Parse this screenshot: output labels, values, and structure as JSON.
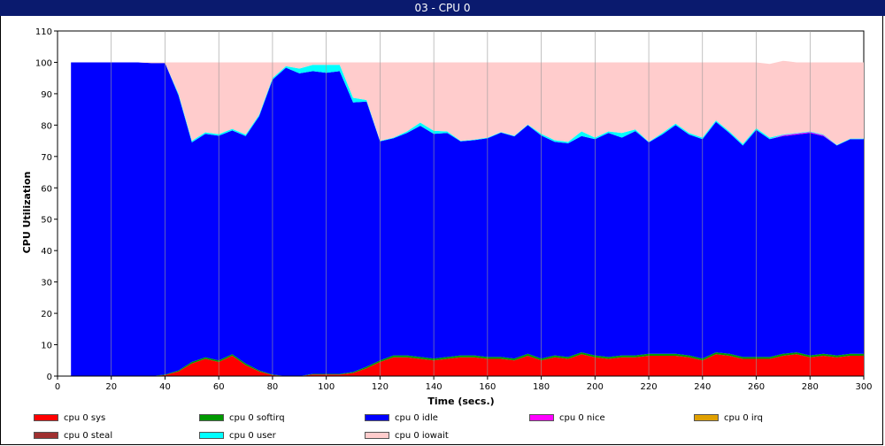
{
  "window": {
    "title": "03 - CPU 0"
  },
  "chart_data": {
    "type": "area",
    "stacked": true,
    "title": "",
    "xlabel": "Time (secs.)",
    "ylabel": "CPU Utilization",
    "xlim": [
      0,
      300
    ],
    "ylim": [
      0,
      110
    ],
    "xticks": [
      0,
      20,
      40,
      60,
      80,
      100,
      120,
      140,
      160,
      180,
      200,
      220,
      240,
      260,
      280,
      300
    ],
    "yticks": [
      0,
      10,
      20,
      30,
      40,
      50,
      60,
      70,
      80,
      90,
      100,
      110
    ],
    "grid": "vertical",
    "legend_position": "bottom",
    "x": [
      5,
      10,
      15,
      20,
      25,
      30,
      35,
      40,
      45,
      50,
      55,
      60,
      65,
      70,
      75,
      80,
      85,
      90,
      95,
      100,
      105,
      110,
      115,
      120,
      125,
      130,
      135,
      140,
      145,
      150,
      155,
      160,
      165,
      170,
      175,
      180,
      185,
      190,
      195,
      200,
      205,
      210,
      215,
      220,
      225,
      230,
      235,
      240,
      245,
      250,
      255,
      260,
      265,
      270,
      275,
      280,
      285,
      290,
      295,
      300
    ],
    "series": [
      {
        "name": "cpu 0 sys",
        "color": "#ff0000",
        "values": [
          0,
          0,
          0,
          0,
          0,
          0,
          0,
          0.3,
          1.5,
          4,
          5.5,
          4.5,
          6.5,
          3.5,
          1.5,
          0.3,
          0,
          0,
          0.5,
          0.5,
          0.5,
          1,
          2.5,
          4.5,
          6,
          6,
          5.5,
          5,
          5.5,
          6,
          6,
          5.5,
          5.5,
          5,
          6.5,
          5,
          6,
          5.5,
          7,
          6,
          5.5,
          6,
          6,
          6.5,
          6.5,
          6.5,
          6,
          5,
          7,
          6.5,
          5.5,
          5.5,
          5.5,
          6.5,
          7,
          6,
          6.5,
          6,
          6.5,
          6.5
        ]
      },
      {
        "name": "cpu 0 softirq",
        "color": "#009900",
        "values": [
          0,
          0,
          0,
          0,
          0,
          0,
          0,
          0.2,
          0.3,
          0.5,
          0.5,
          0.5,
          0.5,
          0.5,
          0.3,
          0.2,
          0,
          0,
          0.2,
          0.2,
          0.2,
          0.3,
          0.5,
          0.5,
          0.6,
          0.6,
          0.6,
          0.6,
          0.6,
          0.6,
          0.6,
          0.6,
          0.6,
          0.6,
          0.6,
          0.6,
          0.6,
          0.6,
          0.6,
          0.6,
          0.6,
          0.6,
          0.6,
          0.6,
          0.6,
          0.6,
          0.6,
          0.6,
          0.6,
          0.6,
          0.6,
          0.6,
          0.6,
          0.6,
          0.6,
          0.6,
          0.6,
          0.6,
          0.6,
          0.6
        ]
      },
      {
        "name": "cpu 0 idle",
        "color": "#0000ff",
        "values": [
          100,
          100,
          100,
          100,
          100,
          100,
          99.8,
          99.3,
          87.7,
          70,
          71.2,
          71.6,
          71.3,
          72.5,
          81,
          94,
          98.3,
          96.5,
          96.5,
          96,
          96.5,
          85.9,
          84.5,
          69.8,
          69.2,
          70.9,
          73.7,
          71.6,
          71.4,
          68.2,
          68.6,
          69.7,
          71.5,
          70.8,
          72.9,
          71.1,
          68.1,
          68.1,
          68.9,
          68.9,
          71.4,
          69.4,
          71.5,
          67.4,
          69.9,
          72.9,
          70.4,
          69.9,
          73.4,
          70.4,
          67.4,
          72.4,
          69.4,
          69.4,
          69.4,
          70.9,
          69.4,
          66.9,
          68.4,
          68.4
        ]
      },
      {
        "name": "cpu 0 nice",
        "color": "#ff00ff",
        "values": [
          0,
          0,
          0,
          0,
          0,
          0,
          0,
          0,
          0,
          0,
          0,
          0,
          0,
          0,
          0,
          0,
          0,
          0,
          0,
          0,
          0,
          0,
          0,
          0,
          0,
          0,
          0,
          0,
          0,
          0,
          0,
          0,
          0,
          0,
          0,
          0,
          0,
          0,
          0,
          0,
          0,
          0,
          0,
          0,
          0,
          0,
          0,
          0,
          0,
          0,
          0,
          0,
          0,
          0.3,
          0.3,
          0.3,
          0.3,
          0,
          0,
          0
        ]
      },
      {
        "name": "cpu 0 irq",
        "color": "#e0a000",
        "values": [
          0,
          0,
          0,
          0,
          0,
          0,
          0,
          0,
          0,
          0,
          0,
          0,
          0,
          0,
          0,
          0,
          0,
          0,
          0,
          0,
          0,
          0,
          0,
          0,
          0,
          0,
          0,
          0,
          0,
          0,
          0,
          0,
          0,
          0,
          0,
          0,
          0,
          0,
          0,
          0,
          0,
          0,
          0,
          0,
          0,
          0,
          0,
          0,
          0,
          0,
          0,
          0,
          0,
          0,
          0,
          0,
          0,
          0,
          0,
          0
        ]
      },
      {
        "name": "cpu 0 steal",
        "color": "#a03030",
        "values": [
          0,
          0,
          0,
          0,
          0,
          0,
          0,
          0,
          0,
          0,
          0,
          0,
          0,
          0,
          0,
          0,
          0,
          0,
          0,
          0,
          0,
          0,
          0,
          0,
          0,
          0,
          0,
          0,
          0,
          0,
          0,
          0,
          0,
          0,
          0,
          0,
          0,
          0,
          0,
          0,
          0,
          0,
          0,
          0,
          0,
          0,
          0,
          0,
          0,
          0,
          0,
          0,
          0,
          0,
          0,
          0,
          0,
          0,
          0,
          0
        ]
      },
      {
        "name": "cpu 0 user",
        "color": "#00ffff",
        "values": [
          0,
          0,
          0,
          0,
          0,
          0,
          0,
          0,
          0.5,
          0.5,
          0.5,
          0.5,
          0.5,
          0.5,
          0.5,
          0.5,
          0.5,
          1.5,
          2,
          2.5,
          2,
          1.5,
          0.5,
          0.2,
          0.2,
          0.5,
          1,
          1,
          0.5,
          0.2,
          0.2,
          0.2,
          0.2,
          0.2,
          0.2,
          0.5,
          0.5,
          0.5,
          1.5,
          0.5,
          0.5,
          1.5,
          0.5,
          0.2,
          0.5,
          0.5,
          0.5,
          0.5,
          0.5,
          0.5,
          0.5,
          0.5,
          0.5,
          0.2,
          0.2,
          0.2,
          0.2,
          0.2,
          0.2,
          0.2
        ]
      },
      {
        "name": "cpu 0 iowait",
        "color": "#ffcccc",
        "values": [
          0,
          0,
          0,
          0,
          0,
          0,
          0.2,
          0.2,
          10,
          25,
          22.3,
          22.9,
          21.2,
          23,
          16.7,
          5,
          1.2,
          2,
          0.8,
          0.8,
          0.8,
          11.3,
          12,
          25,
          24,
          22,
          19.2,
          21.8,
          22,
          25,
          24.6,
          24,
          22.2,
          23.4,
          19.8,
          22.8,
          24.8,
          25.3,
          22,
          24,
          22,
          22.5,
          21.4,
          25.3,
          22.5,
          19.5,
          22.5,
          24,
          18.5,
          22,
          26,
          21,
          23.5,
          23.5,
          22.5,
          22,
          23,
          26.3,
          24.3,
          24.3
        ]
      }
    ]
  },
  "legend": {
    "items": [
      {
        "label": "cpu 0 sys",
        "color": "#ff0000"
      },
      {
        "label": "cpu 0 softirq",
        "color": "#009900"
      },
      {
        "label": "cpu 0 idle",
        "color": "#0000ff"
      },
      {
        "label": "cpu 0 nice",
        "color": "#ff00ff"
      },
      {
        "label": "cpu 0 irq",
        "color": "#e0a000"
      },
      {
        "label": "cpu 0 steal",
        "color": "#a03030"
      },
      {
        "label": "cpu 0 user",
        "color": "#00ffff"
      },
      {
        "label": "cpu 0 iowait",
        "color": "#ffcccc"
      }
    ]
  }
}
